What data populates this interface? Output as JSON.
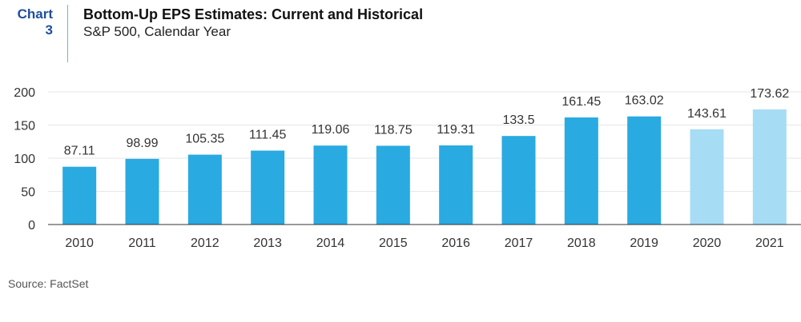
{
  "header": {
    "chart_label_line1": "Chart",
    "chart_label_line2": "3",
    "title": "Bottom-Up EPS Estimates: Current and Historical",
    "subtitle": "S&P 500, Calendar Year"
  },
  "footer": {
    "source": "Source: FactSet"
  },
  "colors": {
    "actual": "#29aae1",
    "estimate": "#a7dcf5",
    "grid": "#e6e6e6",
    "axis": "#333333",
    "text": "#333333"
  },
  "chart_data": {
    "type": "bar",
    "title": "Bottom-Up EPS Estimates: Current and Historical",
    "subtitle": "S&P 500, Calendar Year",
    "xlabel": "",
    "ylabel": "",
    "categories": [
      "2010",
      "2011",
      "2012",
      "2013",
      "2014",
      "2015",
      "2016",
      "2017",
      "2018",
      "2019",
      "2020",
      "2021"
    ],
    "values": [
      87.11,
      98.99,
      105.35,
      111.45,
      119.06,
      118.75,
      119.31,
      133.5,
      161.45,
      163.02,
      143.61,
      173.62
    ],
    "value_labels": [
      "87.11",
      "98.99",
      "105.35",
      "111.45",
      "119.06",
      "118.75",
      "119.31",
      "133.5",
      "161.45",
      "163.02",
      "143.61",
      "173.62"
    ],
    "estimate_flags": [
      false,
      false,
      false,
      false,
      false,
      false,
      false,
      false,
      false,
      false,
      true,
      true
    ],
    "ylim": [
      0,
      200
    ],
    "yticks": [
      0,
      50,
      100,
      150,
      200
    ],
    "grid": true,
    "legend": "none"
  }
}
